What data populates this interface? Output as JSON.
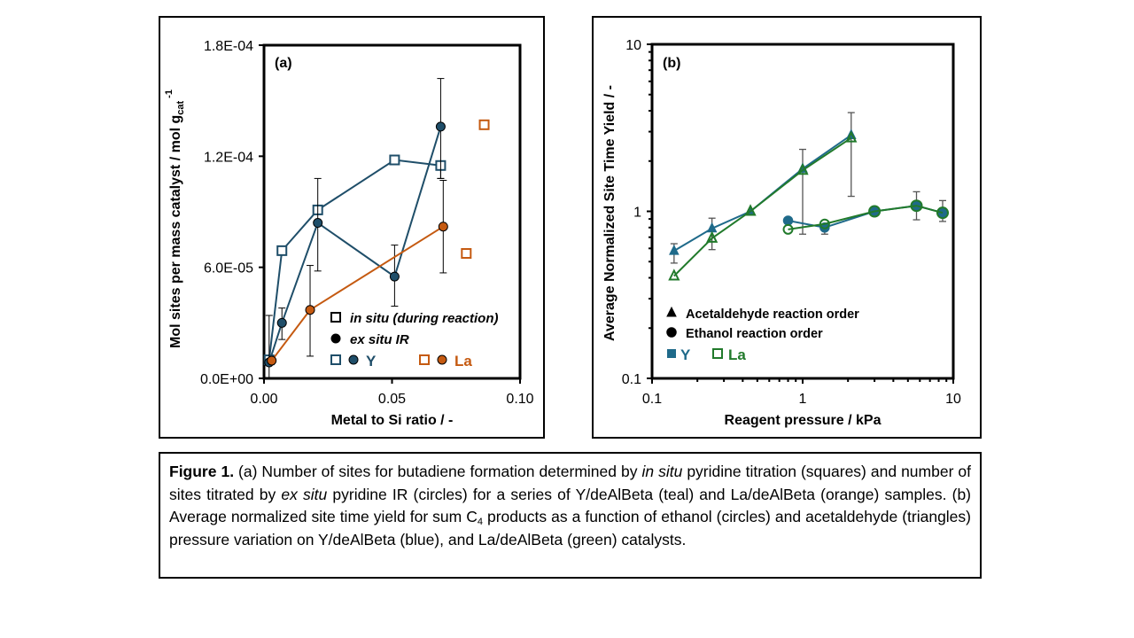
{
  "chart_data": [
    {
      "type": "scatter",
      "panel_label": "(a)",
      "title": "",
      "xlabel": "Metal to Si ratio / -",
      "ylabel": "Mol sites per mass catalyst / mol g",
      "ylabel_sub": "cat",
      "ylabel_sup": "-1",
      "xlim": [
        0,
        0.1
      ],
      "ylim": [
        0,
        0.00018
      ],
      "xticks": [
        0,
        0.05,
        0.1
      ],
      "xtick_labels": [
        "0.00",
        "0.05",
        "0.10"
      ],
      "yticks": [
        0,
        6e-05,
        0.00012,
        0.00018
      ],
      "ytick_labels": [
        "0.0E+00",
        "6.0E-05",
        "1.2E-04",
        "1.8E-04"
      ],
      "grid": false,
      "legend_position": "bottom-right",
      "legend": {
        "marker_rows": [
          {
            "marker": "square-open",
            "label": "in situ (during reaction)"
          },
          {
            "marker": "circle-filled",
            "label": "ex situ IR"
          }
        ],
        "color_rows": [
          {
            "label": "Y",
            "color": "#1f4e69"
          },
          {
            "label": "La",
            "color": "#c55a11"
          }
        ]
      },
      "series": [
        {
          "name": "Y in situ",
          "marker": "square-open",
          "color": "#1f4e69",
          "connected": true,
          "x": [
            0.002,
            0.007,
            0.021,
            0.051,
            0.069
          ],
          "y": [
            1e-05,
            6.9e-05,
            9.1e-05,
            0.000118,
            0.000115
          ],
          "err_low": [
            null,
            null,
            null,
            null,
            0.000108
          ],
          "err_high": [
            null,
            null,
            null,
            null,
            0.000115
          ]
        },
        {
          "name": "Y ex situ IR",
          "marker": "circle-filled",
          "color": "#1f4e69",
          "connected": true,
          "x": [
            0.002,
            0.007,
            0.021,
            0.051,
            0.069
          ],
          "y": [
            8.6e-06,
            3e-05,
            8.4e-05,
            5.5e-05,
            0.000136
          ],
          "err_low": [
            0.0,
            2.1e-05,
            5.8e-05,
            3.9e-05,
            0.000108
          ],
          "err_high": [
            3.4e-05,
            3.8e-05,
            0.000108,
            7.2e-05,
            0.000162
          ]
        },
        {
          "name": "La ex situ IR",
          "marker": "circle-filled",
          "color": "#c55a11",
          "connected": true,
          "x": [
            0.003,
            0.018,
            0.07
          ],
          "y": [
            9.6e-06,
            3.7e-05,
            8.2e-05
          ],
          "err_low": [
            null,
            1.2e-05,
            5.7e-05
          ],
          "err_high": [
            null,
            6.1e-05,
            0.000107
          ]
        },
        {
          "name": "La in situ",
          "marker": "square-open",
          "color": "#c55a11",
          "connected": false,
          "x": [
            0.079,
            0.086
          ],
          "y": [
            6.75e-05,
            0.000137
          ],
          "err_low": [
            null,
            null
          ],
          "err_high": [
            null,
            null
          ]
        }
      ]
    },
    {
      "type": "line",
      "panel_label": "(b)",
      "title": "",
      "xlabel": "Reagent pressure / kPa",
      "ylabel": "Average Normalized Site Time Yield / -",
      "xscale": "log",
      "yscale": "log",
      "xlim": [
        0.1,
        10
      ],
      "ylim": [
        0.1,
        10
      ],
      "xtick_labels": [
        "0.1",
        "1",
        "10"
      ],
      "ytick_labels": [
        "0.1",
        "1",
        "10"
      ],
      "grid": false,
      "legend_position": "bottom-left",
      "legend": {
        "marker_rows": [
          {
            "marker": "triangle-filled",
            "label": "Acetaldehyde reaction order"
          },
          {
            "marker": "circle-filled",
            "label": "Ethanol reaction order"
          }
        ],
        "color_rows": [
          {
            "label": "Y",
            "color": "#1f6a8a",
            "marker": "square-filled"
          },
          {
            "label": "La",
            "color": "#217a2b",
            "marker": "square-open"
          }
        ]
      },
      "series": [
        {
          "name": "Y acetaldehyde",
          "marker": "triangle-filled",
          "color": "#1f6a8a",
          "x": [
            0.14,
            0.25,
            0.45,
            1.0,
            2.1
          ],
          "y": [
            0.58,
            0.79,
            1.0,
            1.8,
            2.86
          ],
          "err_low": [
            0.49,
            0.59,
            null,
            0.73,
            1.23
          ],
          "err_high": [
            0.64,
            0.91,
            null,
            2.35,
            3.9
          ]
        },
        {
          "name": "La acetaldehyde",
          "marker": "triangle-open",
          "color": "#217a2b",
          "x": [
            0.14,
            0.25,
            0.45,
            1.0,
            2.1
          ],
          "y": [
            0.41,
            0.69,
            1.0,
            1.76,
            2.75
          ],
          "err_low": [
            null,
            null,
            null,
            null,
            null
          ],
          "err_high": [
            null,
            null,
            null,
            null,
            null
          ]
        },
        {
          "name": "Y ethanol",
          "marker": "circle-filled",
          "color": "#1f6a8a",
          "x": [
            0.8,
            1.4,
            3.0,
            5.7,
            8.5
          ],
          "y": [
            0.88,
            0.8,
            1.0,
            1.08,
            0.98
          ],
          "err_low": [
            null,
            0.73,
            null,
            0.89,
            0.87
          ],
          "err_high": [
            null,
            null,
            null,
            1.31,
            1.16
          ]
        },
        {
          "name": "La ethanol",
          "marker": "circle-open",
          "color": "#217a2b",
          "x": [
            0.8,
            1.4,
            3.0,
            5.7,
            8.5
          ],
          "y": [
            0.78,
            0.84,
            1.0,
            1.08,
            0.98
          ],
          "err_low": [
            null,
            null,
            null,
            null,
            null
          ],
          "err_high": [
            null,
            null,
            null,
            null,
            null
          ]
        }
      ]
    }
  ],
  "caption": {
    "figure_label": "Figure 1.",
    "p1": " (a) Number of sites for butadiene formation determined by ",
    "i1": "in situ",
    "p2": " pyridine titration (squares) and number of sites titrated by ",
    "i2": "ex situ",
    "p3": " pyridine IR (circles) for a series of Y/deAlBeta (teal) and La/deAlBeta (orange) samples. (b) Average normalized site time yield for sum C",
    "sub1": "4",
    "p4": " products as a function of ethanol (circles) and acetaldehyde (triangles) pressure variation on Y/deAlBeta (blue), and La/deAlBeta (green) catalysts."
  }
}
